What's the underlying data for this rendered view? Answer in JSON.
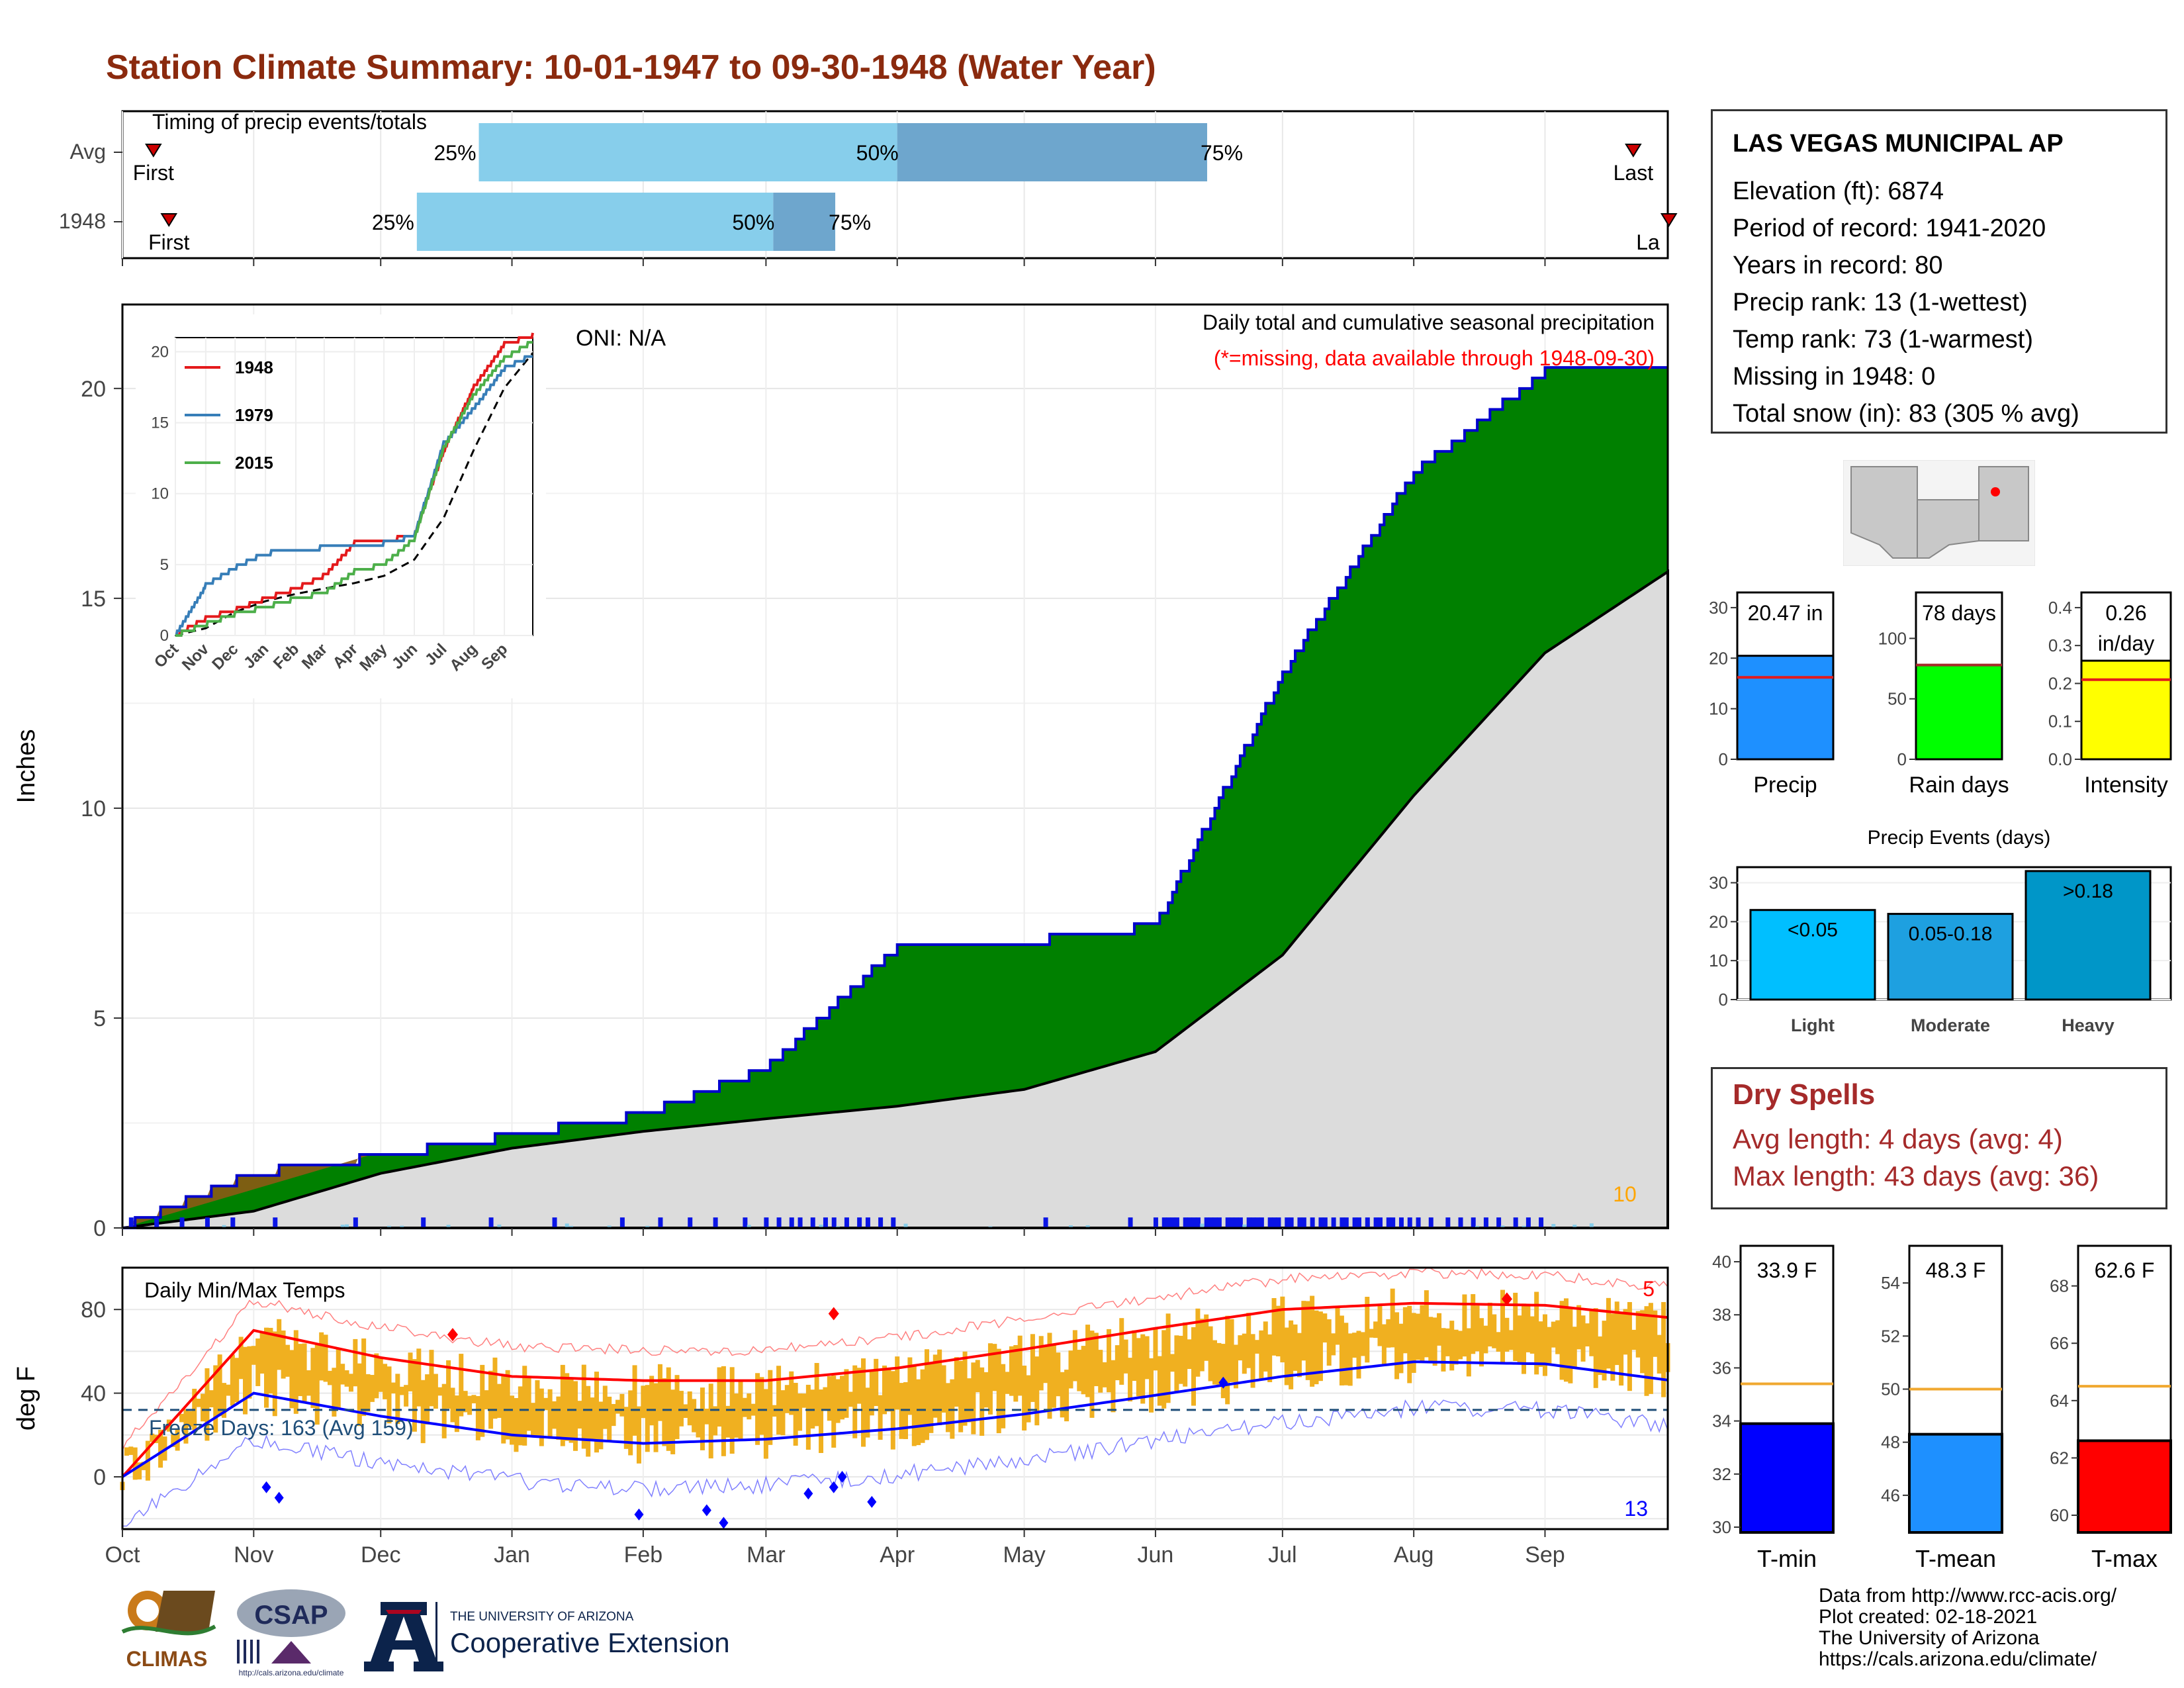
{
  "title": "Station Climate Summary: 10-01-1947 to 09-30-1948 (Water Year)",
  "colors": {
    "title": "#8b2a0e",
    "green_fill": "#008000",
    "brown_fill": "#8b5a14",
    "avg_fill": "#dcdcdc",
    "blue_line": "#0000cd",
    "daily_bar": "#0a14e6",
    "light_blue": "#87ceeb",
    "orange": "#ffa500",
    "temp_bar": "#f0b020",
    "red": "#ff0000",
    "dark_blue_line": "#0000ff",
    "freeze_line": "#1f4e79",
    "precip_bar": "#1e90ff",
    "rain_bar": "#00ff00",
    "intensity_bar": "#ffff00",
    "event_light": "#00bfff",
    "event_moderate": "#1ea0e0",
    "event_heavy": "#0096c8",
    "dry_text": "#a52a2a"
  },
  "timing": {
    "label": "Timing of precip events/totals",
    "rows": [
      "Avg",
      "1948"
    ],
    "avg": {
      "first_label": "First",
      "last_label": "Last",
      "p25": "25%",
      "p50": "50%",
      "p75": "75%"
    },
    "y1948": {
      "first_label": "First",
      "last_label": "La",
      "p25": "25%",
      "p50": "50%",
      "p75": "75%"
    }
  },
  "precip_panel": {
    "ylabel": "Inches",
    "oni_label": "ONI: N/A",
    "caption_1": "Daily total and cumulative seasonal precipitation",
    "caption_2": "(*=missing, data available through 1948-09-30)",
    "count_label": "10",
    "yticks": [
      "0",
      "5",
      "10",
      "15",
      "20"
    ]
  },
  "inset": {
    "legend": [
      "1948",
      "1979",
      "2015"
    ],
    "legend_colors": [
      "#e41a1c",
      "#377eb8",
      "#4daf4a"
    ],
    "yticks": [
      "0",
      "5",
      "10",
      "15",
      "20"
    ],
    "xticks": [
      "Oct",
      "Nov",
      "Dec",
      "Jan",
      "Feb",
      "Mar",
      "Apr",
      "May",
      "Jun",
      "Jul",
      "Aug",
      "Sep"
    ]
  },
  "temp_panel": {
    "ylabel": "deg F",
    "title": "Daily Min/Max Temps",
    "freeze_label": "Freeze Days: 163 (Avg 159)",
    "count_high": "5",
    "count_low": "13",
    "yticks": [
      "0",
      "40",
      "80"
    ]
  },
  "months": [
    "Oct",
    "Nov",
    "Dec",
    "Jan",
    "Feb",
    "Mar",
    "Apr",
    "May",
    "Jun",
    "Jul",
    "Aug",
    "Sep"
  ],
  "station": {
    "name": "LAS VEGAS MUNICIPAL AP",
    "elevation": "Elevation (ft): 6874",
    "period": "Period of record: 1941-2020",
    "years": "Years in record: 80",
    "precip_rank": "Precip rank: 13 (1-wettest)",
    "temp_rank": "Temp rank: 73 (1-warmest)",
    "missing": "Missing in 1948: 0",
    "snow": "Total snow (in): 83 (305 % avg)"
  },
  "summary_bars": {
    "precip": {
      "label": "Precip",
      "value_label": "20.47 in",
      "value": 20.47,
      "avg": 16.2,
      "yticks": [
        "0",
        "10",
        "20",
        "30"
      ]
    },
    "rain_days": {
      "label": "Rain days",
      "value_label": "78 days",
      "value": 78,
      "avg": 78,
      "yticks": [
        "0",
        "50",
        "100"
      ]
    },
    "intensity": {
      "label": "Intensity",
      "value_label_1": "0.26",
      "value_label_2": "in/day",
      "value": 0.26,
      "avg": 0.21,
      "yticks": [
        "0.0",
        "0.1",
        "0.2",
        "0.3",
        "0.4"
      ]
    }
  },
  "events": {
    "title": "Precip Events (days)",
    "yticks": [
      "0",
      "10",
      "20",
      "30"
    ],
    "labels": [
      "Light",
      "Moderate",
      "Heavy"
    ],
    "bar_labels": [
      "<0.05",
      "0.05-0.18",
      ">0.18"
    ]
  },
  "dry_spells": {
    "title": "Dry Spells",
    "avg_length": "Avg length: 4 days (avg: 4)",
    "max_length": "Max length: 43 days (avg: 36)"
  },
  "temp_bars": {
    "tmin": {
      "label": "T-min",
      "value_label": "33.9 F",
      "value": 33.9,
      "avg": 35.4,
      "yticks": [
        "30",
        "32",
        "34",
        "36",
        "38",
        "40"
      ]
    },
    "tmean": {
      "label": "T-mean",
      "value_label": "48.3 F",
      "value": 48.3,
      "avg": 50.0,
      "yticks": [
        "46",
        "48",
        "50",
        "52",
        "54"
      ]
    },
    "tmax": {
      "label": "T-max",
      "value_label": "62.6 F",
      "value": 62.6,
      "avg": 64.5,
      "yticks": [
        "60",
        "62",
        "64",
        "66",
        "68"
      ]
    }
  },
  "footer": {
    "source": [
      "Data from http://www.rcc-acis.org/",
      "Plot created: 02-18-2021",
      "The University of Arizona",
      "https://cals.arizona.edu/climate/"
    ],
    "logo_climas": "CLIMAS",
    "logo_csap": "CSAP",
    "logo_csap_url": "http://cals.arizona.edu/climate",
    "ua_small": "THE UNIVERSITY OF ARIZONA",
    "ua_big": "Cooperative Extension"
  },
  "chart_data": [
    {
      "type": "area",
      "title": "Daily total and cumulative seasonal precipitation",
      "ylabel": "Inches",
      "ylim": [
        0,
        22
      ],
      "x": [
        "Oct",
        "Nov",
        "Dec",
        "Jan",
        "Feb",
        "Mar",
        "Apr",
        "May",
        "Jun",
        "Jul",
        "Aug",
        "Sep"
      ],
      "series": [
        {
          "name": "1948",
          "values": [
            1.3,
            1.7,
            2.2,
            2.7,
            3.8,
            6.7,
            6.8,
            7.2,
            13.2,
            18.0,
            20.4,
            20.5
          ]
        },
        {
          "name": "Avg",
          "values": [
            0.4,
            1.3,
            1.9,
            2.3,
            2.6,
            2.9,
            3.3,
            4.2,
            6.5,
            10.3,
            13.7,
            15.7
          ]
        }
      ]
    },
    {
      "type": "line",
      "title": "Daily Min/Max Temps",
      "ylabel": "deg F",
      "ylim": [
        -25,
        100
      ],
      "x": [
        "Oct",
        "Nov",
        "Dec",
        "Jan",
        "Feb",
        "Mar",
        "Apr",
        "May",
        "Jun",
        "Jul",
        "Aug",
        "Sep"
      ],
      "series": [
        {
          "name": "Avg max",
          "values": [
            70,
            57,
            48,
            46,
            46,
            52,
            61,
            71,
            80,
            83,
            82,
            76
          ]
        },
        {
          "name": "Avg min",
          "values": [
            40,
            29,
            20,
            16,
            18,
            23,
            30,
            39,
            48,
            55,
            54,
            46
          ]
        }
      ],
      "freeze_line": 32
    }
  ]
}
